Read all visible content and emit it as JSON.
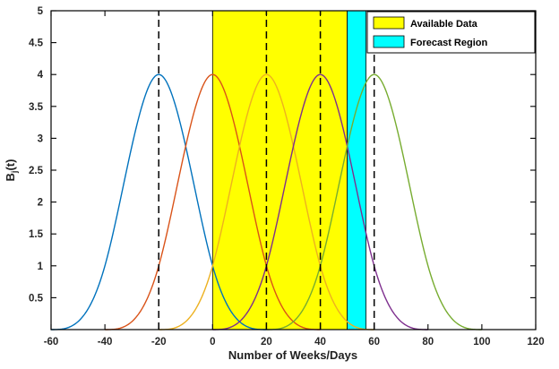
{
  "figure": {
    "background": "#ffffff"
  },
  "chart_data": {
    "type": "line",
    "title": "",
    "xlabel": "Number of Weeks/Days",
    "ylabel": "B_j(t)",
    "ylabel_parts": {
      "base": "B",
      "sub": "j",
      "suffix": "(t)"
    },
    "xlim": [
      -60,
      120
    ],
    "ylim": [
      0,
      5
    ],
    "xticks": [
      "-60",
      "-40",
      "-20",
      "0",
      "20",
      "40",
      "60",
      "80",
      "100",
      "120"
    ],
    "yticks": [
      "0.5",
      "1",
      "1.5",
      "2",
      "2.5",
      "3",
      "3.5",
      "4",
      "4.5",
      "5"
    ],
    "grid": false,
    "curve_model": "uniform cubic B-spline basis functions, peak scaled to 4, value 1 at adjacent knots, knot spacing 20",
    "knot_spacing": 20,
    "peak_value": 4,
    "series": [
      {
        "name": "basis centered at -20",
        "center": -20,
        "peak": 4,
        "support": [
          -60,
          20
        ],
        "color": "#0072BD"
      },
      {
        "name": "basis centered at 0",
        "center": 0,
        "peak": 4,
        "support": [
          -40,
          40
        ],
        "color": "#D95319"
      },
      {
        "name": "basis centered at 20",
        "center": 20,
        "peak": 4,
        "support": [
          -20,
          60
        ],
        "color": "#EDB120"
      },
      {
        "name": "basis centered at 40",
        "center": 40,
        "peak": 4,
        "support": [
          0,
          80
        ],
        "color": "#7E2F8E"
      },
      {
        "name": "basis centered at 60",
        "center": 60,
        "peak": 4,
        "support": [
          20,
          100
        ],
        "color": "#77AC30"
      }
    ],
    "regions": [
      {
        "label": "Available Data",
        "x0": 0,
        "x1": 50,
        "color": "#FFFF00"
      },
      {
        "label": "Forecast Region",
        "x0": 50,
        "x1": 57,
        "color": "#00FFFF"
      }
    ],
    "dashed_knot_lines": [
      -20,
      20,
      40,
      60
    ],
    "legend": {
      "position": "top-right",
      "entries": [
        {
          "label": "Available Data",
          "color": "#FFFF00"
        },
        {
          "label": "Forecast Region",
          "color": "#00FFFF"
        }
      ]
    },
    "axis_color": "#000000",
    "tick_label_color": "#262626"
  }
}
